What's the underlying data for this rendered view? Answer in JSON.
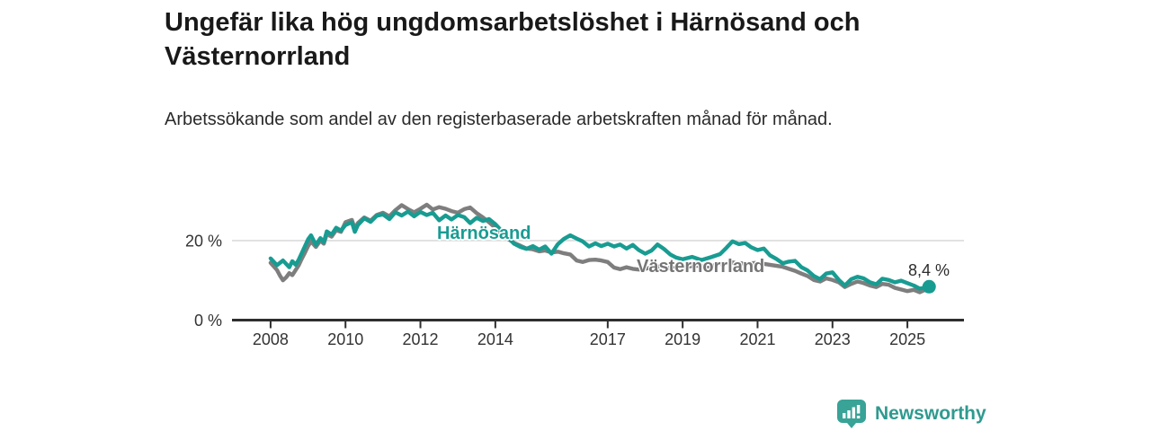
{
  "title": "Ungefär lika hög ungdomsarbetslöshet i Härnösand och Västernorrland",
  "subtitle": "Arbetssökande som andel av den registerbaserade arbetskraften månad för månad.",
  "footer": {
    "brand": "Newsworthy",
    "logo_icon": "bar-chart-speech-bubble-icon"
  },
  "colors": {
    "harnosand": "#189c92",
    "vasternorrland": "#7e7e7e",
    "grid": "#dcdcdc",
    "axis": "#2e2e2e",
    "axis_text": "#333333",
    "title_text": "#191919",
    "brand": "#2f9a8f"
  },
  "chart_data": {
    "type": "line",
    "title": "Ungefär lika hög ungdomsarbetslöshet i Härnösand och Västernorrland",
    "subtitle": "Arbetssökande som andel av den registerbaserade arbetskraften månad för månad.",
    "unit": "%",
    "grid": "horizontal-20-only",
    "legend_position": "inline-series-labels",
    "x_axis": {
      "ticks": [
        2008,
        2010,
        2012,
        2014,
        2017,
        2019,
        2021,
        2023,
        2025
      ],
      "labels": [
        "2008",
        "2010",
        "2012",
        "2014",
        "2017",
        "2019",
        "2021",
        "2023",
        "2025"
      ],
      "range": [
        2006.97,
        2026.51
      ]
    },
    "y_axis": {
      "ticks": [
        0,
        20
      ],
      "labels": [
        "0 %",
        "20 %"
      ],
      "range": [
        0,
        32
      ],
      "gridlines": [
        20
      ]
    },
    "end_annotation": {
      "series": "Härnösand",
      "label": "8,4 %",
      "value": 8.4,
      "year": 2025.58
    },
    "series": [
      {
        "name": "Härnösand",
        "color": "#189c92",
        "points": [
          [
            2008.0,
            15.5
          ],
          [
            2008.17,
            13.8
          ],
          [
            2008.33,
            15.0
          ],
          [
            2008.5,
            13.3
          ],
          [
            2008.58,
            14.8
          ],
          [
            2008.67,
            13.9
          ],
          [
            2008.75,
            15.2
          ],
          [
            2008.83,
            16.8
          ],
          [
            2008.92,
            18.6
          ],
          [
            2009.0,
            20.3
          ],
          [
            2009.08,
            21.3
          ],
          [
            2009.21,
            18.9
          ],
          [
            2009.33,
            20.6
          ],
          [
            2009.42,
            19.6
          ],
          [
            2009.5,
            22.3
          ],
          [
            2009.63,
            21.5
          ],
          [
            2009.75,
            23.2
          ],
          [
            2009.88,
            22.5
          ],
          [
            2010.0,
            23.9
          ],
          [
            2010.17,
            24.6
          ],
          [
            2010.25,
            22.2
          ],
          [
            2010.33,
            23.9
          ],
          [
            2010.5,
            25.6
          ],
          [
            2010.67,
            24.7
          ],
          [
            2010.83,
            26.2
          ],
          [
            2011.0,
            26.6
          ],
          [
            2011.17,
            25.4
          ],
          [
            2011.33,
            27.1
          ],
          [
            2011.5,
            26.3
          ],
          [
            2011.67,
            27.3
          ],
          [
            2011.83,
            26.1
          ],
          [
            2012.0,
            27.2
          ],
          [
            2012.17,
            26.4
          ],
          [
            2012.33,
            27.0
          ],
          [
            2012.5,
            25.1
          ],
          [
            2012.67,
            26.3
          ],
          [
            2012.83,
            25.3
          ],
          [
            2013.0,
            26.4
          ],
          [
            2013.17,
            25.9
          ],
          [
            2013.33,
            24.4
          ],
          [
            2013.5,
            25.7
          ],
          [
            2013.67,
            24.9
          ],
          [
            2013.83,
            25.4
          ],
          [
            2014.0,
            24.1
          ],
          [
            2014.25,
            21.6
          ],
          [
            2014.5,
            19.2
          ],
          [
            2014.67,
            18.4
          ],
          [
            2014.83,
            17.9
          ],
          [
            2015.0,
            18.6
          ],
          [
            2015.17,
            17.7
          ],
          [
            2015.33,
            18.5
          ],
          [
            2015.5,
            16.7
          ],
          [
            2015.67,
            19.1
          ],
          [
            2015.83,
            20.4
          ],
          [
            2016.0,
            21.3
          ],
          [
            2016.17,
            20.5
          ],
          [
            2016.33,
            19.8
          ],
          [
            2016.5,
            18.5
          ],
          [
            2016.67,
            19.3
          ],
          [
            2016.83,
            18.6
          ],
          [
            2017.0,
            19.2
          ],
          [
            2017.17,
            18.5
          ],
          [
            2017.33,
            19.0
          ],
          [
            2017.5,
            18.0
          ],
          [
            2017.67,
            18.9
          ],
          [
            2017.83,
            17.6
          ],
          [
            2018.0,
            16.7
          ],
          [
            2018.17,
            17.5
          ],
          [
            2018.33,
            19.0
          ],
          [
            2018.5,
            17.9
          ],
          [
            2018.67,
            16.5
          ],
          [
            2018.83,
            15.7
          ],
          [
            2019.0,
            15.3
          ],
          [
            2019.25,
            15.9
          ],
          [
            2019.5,
            15.1
          ],
          [
            2019.75,
            15.8
          ],
          [
            2020.0,
            16.6
          ],
          [
            2020.17,
            18.2
          ],
          [
            2020.33,
            19.8
          ],
          [
            2020.5,
            19.1
          ],
          [
            2020.67,
            19.4
          ],
          [
            2020.83,
            18.3
          ],
          [
            2021.0,
            17.6
          ],
          [
            2021.17,
            18.0
          ],
          [
            2021.33,
            16.3
          ],
          [
            2021.5,
            15.4
          ],
          [
            2021.67,
            14.3
          ],
          [
            2021.83,
            14.7
          ],
          [
            2022.0,
            14.9
          ],
          [
            2022.17,
            13.3
          ],
          [
            2022.33,
            12.5
          ],
          [
            2022.5,
            11.1
          ],
          [
            2022.67,
            10.3
          ],
          [
            2022.83,
            11.7
          ],
          [
            2023.0,
            12.0
          ],
          [
            2023.17,
            10.1
          ],
          [
            2023.33,
            8.7
          ],
          [
            2023.5,
            10.3
          ],
          [
            2023.67,
            10.9
          ],
          [
            2023.83,
            10.5
          ],
          [
            2024.0,
            9.5
          ],
          [
            2024.17,
            9.0
          ],
          [
            2024.33,
            10.4
          ],
          [
            2024.5,
            10.1
          ],
          [
            2024.67,
            9.5
          ],
          [
            2024.83,
            9.9
          ],
          [
            2025.0,
            9.3
          ],
          [
            2025.17,
            8.7
          ],
          [
            2025.33,
            7.9
          ],
          [
            2025.58,
            8.4
          ]
        ]
      },
      {
        "name": "Västernorrland",
        "color": "#7e7e7e",
        "points": [
          [
            2008.0,
            14.4
          ],
          [
            2008.17,
            12.6
          ],
          [
            2008.25,
            11.2
          ],
          [
            2008.33,
            10.0
          ],
          [
            2008.42,
            10.8
          ],
          [
            2008.5,
            11.8
          ],
          [
            2008.58,
            11.3
          ],
          [
            2008.67,
            12.6
          ],
          [
            2008.75,
            13.8
          ],
          [
            2008.83,
            15.4
          ],
          [
            2008.92,
            17.0
          ],
          [
            2009.0,
            18.6
          ],
          [
            2009.08,
            19.8
          ],
          [
            2009.21,
            18.4
          ],
          [
            2009.33,
            20.0
          ],
          [
            2009.42,
            19.2
          ],
          [
            2009.5,
            21.6
          ],
          [
            2009.63,
            21.0
          ],
          [
            2009.75,
            22.6
          ],
          [
            2009.88,
            22.2
          ],
          [
            2010.0,
            24.6
          ],
          [
            2010.17,
            25.2
          ],
          [
            2010.25,
            23.0
          ],
          [
            2010.33,
            24.4
          ],
          [
            2010.5,
            25.8
          ],
          [
            2010.67,
            25.0
          ],
          [
            2010.83,
            26.4
          ],
          [
            2011.0,
            27.0
          ],
          [
            2011.17,
            26.1
          ],
          [
            2011.33,
            27.6
          ],
          [
            2011.5,
            28.9
          ],
          [
            2011.67,
            27.9
          ],
          [
            2011.83,
            27.1
          ],
          [
            2012.0,
            28.0
          ],
          [
            2012.17,
            29.0
          ],
          [
            2012.33,
            27.8
          ],
          [
            2012.5,
            28.4
          ],
          [
            2012.67,
            28.0
          ],
          [
            2012.83,
            27.4
          ],
          [
            2013.0,
            27.0
          ],
          [
            2013.17,
            27.9
          ],
          [
            2013.33,
            28.3
          ],
          [
            2013.5,
            26.9
          ],
          [
            2013.67,
            25.8
          ],
          [
            2013.83,
            24.6
          ],
          [
            2014.0,
            23.2
          ],
          [
            2014.25,
            21.0
          ],
          [
            2014.5,
            19.4
          ],
          [
            2014.67,
            18.7
          ],
          [
            2014.83,
            18.0
          ],
          [
            2015.0,
            17.8
          ],
          [
            2015.17,
            17.3
          ],
          [
            2015.33,
            17.5
          ],
          [
            2015.5,
            17.0
          ],
          [
            2015.67,
            17.2
          ],
          [
            2015.83,
            16.8
          ],
          [
            2016.0,
            16.5
          ],
          [
            2016.17,
            15.0
          ],
          [
            2016.33,
            14.6
          ],
          [
            2016.5,
            15.1
          ],
          [
            2016.67,
            15.2
          ],
          [
            2016.83,
            15.0
          ],
          [
            2017.0,
            14.6
          ],
          [
            2017.17,
            13.2
          ],
          [
            2017.33,
            12.8
          ],
          [
            2017.5,
            13.3
          ],
          [
            2017.67,
            12.9
          ],
          [
            2017.83,
            12.7
          ],
          [
            2018.0,
            12.9
          ],
          [
            2018.33,
            13.5
          ],
          [
            2018.67,
            13.0
          ],
          [
            2019.0,
            13.3
          ],
          [
            2019.33,
            13.7
          ],
          [
            2019.67,
            13.4
          ],
          [
            2020.0,
            14.1
          ],
          [
            2020.33,
            14.5
          ],
          [
            2020.67,
            14.2
          ],
          [
            2021.0,
            14.4
          ],
          [
            2021.33,
            13.9
          ],
          [
            2021.67,
            13.4
          ],
          [
            2022.0,
            12.4
          ],
          [
            2022.17,
            11.7
          ],
          [
            2022.33,
            11.1
          ],
          [
            2022.5,
            10.1
          ],
          [
            2022.67,
            9.7
          ],
          [
            2022.83,
            10.5
          ],
          [
            2023.0,
            10.1
          ],
          [
            2023.17,
            9.5
          ],
          [
            2023.33,
            8.3
          ],
          [
            2023.5,
            9.1
          ],
          [
            2023.67,
            9.7
          ],
          [
            2023.83,
            9.3
          ],
          [
            2024.0,
            8.7
          ],
          [
            2024.17,
            8.3
          ],
          [
            2024.33,
            9.1
          ],
          [
            2024.5,
            8.9
          ],
          [
            2024.67,
            8.1
          ],
          [
            2024.83,
            7.7
          ],
          [
            2025.0,
            7.3
          ],
          [
            2025.17,
            7.6
          ],
          [
            2025.33,
            7.0
          ],
          [
            2025.58,
            8.1
          ]
        ]
      }
    ]
  }
}
